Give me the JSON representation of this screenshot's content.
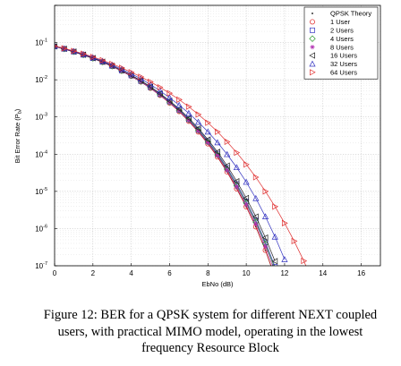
{
  "chart_data": {
    "type": "line",
    "title": "",
    "xlabel": "EbNo (dB)",
    "ylabel": "Bit Error Rate (Pb)",
    "ylabel_main": "Bit Error Rate (P",
    "ylabel_sub": "b",
    "ylabel_close": ")",
    "xlim": [
      0,
      17
    ],
    "xticks": [
      0,
      2,
      4,
      6,
      8,
      10,
      12,
      14,
      16
    ],
    "yscale": "log",
    "ylim": [
      1e-07,
      1
    ],
    "yticks": [
      1e-07,
      1e-06,
      1e-05,
      0.0001,
      0.001,
      0.01,
      0.1
    ],
    "ytick_labels": [
      {
        "base": "10",
        "exp": "-7"
      },
      {
        "base": "10",
        "exp": "-6"
      },
      {
        "base": "10",
        "exp": "-5"
      },
      {
        "base": "10",
        "exp": "-4"
      },
      {
        "base": "10",
        "exp": "-3"
      },
      {
        "base": "10",
        "exp": "-2"
      },
      {
        "base": "10",
        "exp": "-1"
      }
    ],
    "grid": true,
    "legend_position": "top-right",
    "series": [
      {
        "name": "QPSK Theory",
        "marker": "dot",
        "color": "#000000",
        "x": [
          0,
          0.5,
          1,
          1.5,
          2,
          2.5,
          3,
          3.5,
          4,
          4.5,
          5,
          5.5,
          6,
          6.5,
          7,
          7.5,
          8,
          8.5,
          9,
          9.5,
          10,
          10.5,
          11,
          11.5
        ],
        "y": [
          0.0786,
          0.0671,
          0.0563,
          0.0464,
          0.0375,
          0.0297,
          0.0229,
          0.0172,
          0.0125,
          0.0088,
          0.00595,
          0.00385,
          0.00239,
          0.00141,
          0.000773,
          0.000397,
          0.000191,
          8.45e-05,
          3.36e-05,
          1.18e-05,
          3.87e-06,
          1.12e-06,
          2.62e-07,
          4.98e-08
        ]
      },
      {
        "name": "1 User",
        "marker": "circle",
        "color": "#e02020",
        "x": [
          0,
          0.5,
          1,
          1.5,
          2,
          2.5,
          3,
          3.5,
          4,
          4.5,
          5,
          5.5,
          6,
          6.5,
          7,
          7.5,
          8,
          8.5,
          9,
          9.5,
          10,
          10.5,
          11,
          11.5
        ],
        "y": [
          0.0786,
          0.0671,
          0.0563,
          0.0464,
          0.0375,
          0.0297,
          0.0229,
          0.0172,
          0.0125,
          0.0088,
          0.00595,
          0.00385,
          0.00239,
          0.00141,
          0.000773,
          0.000397,
          0.000191,
          8.45e-05,
          3.36e-05,
          1.18e-05,
          3.87e-06,
          1.12e-06,
          2.62e-07,
          4.98e-08
        ]
      },
      {
        "name": "2 Users",
        "marker": "square",
        "color": "#3030c0",
        "x": [
          0,
          0.5,
          1,
          1.5,
          2,
          2.5,
          3,
          3.5,
          4,
          4.5,
          5,
          5.5,
          6,
          6.5,
          7,
          7.5,
          8,
          8.5,
          9,
          9.5,
          10,
          10.5,
          11,
          11.5
        ],
        "y": [
          0.079,
          0.0676,
          0.0568,
          0.0469,
          0.038,
          0.0302,
          0.0234,
          0.0177,
          0.013,
          0.0092,
          0.0063,
          0.00412,
          0.0026,
          0.00156,
          0.00087,
          0.000457,
          0.000225,
          0.000103,
          4.27e-05,
          1.58e-05,
          5.4e-06,
          1.66e-06,
          4.3e-07,
          9.44e-08
        ]
      },
      {
        "name": "4 Users",
        "marker": "diamond",
        "color": "#2e9a2e",
        "x": [
          0,
          0.5,
          1,
          1.5,
          2,
          2.5,
          3,
          3.5,
          4,
          4.5,
          5,
          5.5,
          6,
          6.5,
          7,
          7.5,
          8,
          8.5,
          9,
          9.5,
          10,
          10.5,
          11,
          11.5
        ],
        "y": [
          0.0788,
          0.0673,
          0.0566,
          0.0467,
          0.0378,
          0.03,
          0.0232,
          0.0175,
          0.0128,
          0.009,
          0.00615,
          0.004,
          0.00251,
          0.0015,
          0.000833,
          0.000434,
          0.000212,
          9.64e-05,
          3.95e-05,
          1.44e-05,
          4.9e-06,
          1.5e-06,
          3.86e-07,
          8.2e-08
        ]
      },
      {
        "name": "8 Users",
        "marker": "star",
        "color": "#b030b0",
        "x": [
          0,
          0.5,
          1,
          1.5,
          2,
          2.5,
          3,
          3.5,
          4,
          4.5,
          5,
          5.5,
          6,
          6.5,
          7,
          7.5,
          8,
          8.5,
          9,
          9.5,
          10,
          10.5,
          11,
          11.5
        ],
        "y": [
          0.0787,
          0.0672,
          0.0565,
          0.0466,
          0.0377,
          0.0299,
          0.0231,
          0.0174,
          0.0127,
          0.0089,
          0.00605,
          0.00392,
          0.00245,
          0.00146,
          0.000805,
          0.000416,
          0.000202,
          9.1e-05,
          3.68e-05,
          1.32e-05,
          4.4e-06,
          1.33e-06,
          3.3e-07,
          6.8e-08
        ]
      },
      {
        "name": "16 Users",
        "marker": "triangle-left",
        "color": "#202020",
        "x": [
          0,
          0.5,
          1,
          1.5,
          2,
          2.5,
          3,
          3.5,
          4,
          4.5,
          5,
          5.5,
          6,
          6.5,
          7,
          7.5,
          8,
          8.5,
          9,
          9.5,
          10,
          10.5,
          11,
          11.5
        ],
        "y": [
          0.0792,
          0.0678,
          0.0571,
          0.0472,
          0.0383,
          0.0305,
          0.0237,
          0.018,
          0.0133,
          0.0095,
          0.0065,
          0.00428,
          0.00272,
          0.00165,
          0.00093,
          0.000495,
          0.000247,
          0.000115,
          4.9e-05,
          1.87e-05,
          6.6e-06,
          2.1e-06,
          5.7e-07,
          1.33e-07
        ]
      },
      {
        "name": "32 Users",
        "marker": "triangle-up",
        "color": "#3030c0",
        "x": [
          0,
          0.5,
          1,
          1.5,
          2,
          2.5,
          3,
          3.5,
          4,
          4.5,
          5,
          5.5,
          6,
          6.5,
          7,
          7.5,
          8,
          8.5,
          9,
          9.5,
          10,
          10.5,
          11,
          11.5,
          12
        ],
        "y": [
          0.08,
          0.0688,
          0.0582,
          0.0484,
          0.0396,
          0.0318,
          0.025,
          0.0193,
          0.0145,
          0.0106,
          0.00745,
          0.00505,
          0.0033,
          0.00208,
          0.00126,
          0.00073,
          0.0004,
          0.000206,
          9.9e-05,
          4.4e-05,
          1.78e-05,
          6.5e-06,
          2.1e-06,
          6e-07,
          1.48e-07
        ]
      },
      {
        "name": "64 Users",
        "marker": "triangle-right",
        "color": "#e03030",
        "x": [
          0,
          0.5,
          1,
          1.5,
          2,
          2.5,
          3,
          3.5,
          4,
          4.5,
          5,
          5.5,
          6,
          6.5,
          7,
          7.5,
          8,
          8.5,
          9,
          9.5,
          10,
          10.5,
          11,
          11.5,
          12,
          12.5,
          13,
          13.5
        ],
        "y": [
          0.081,
          0.07,
          0.0596,
          0.05,
          0.0412,
          0.0335,
          0.0267,
          0.0209,
          0.016,
          0.012,
          0.0088,
          0.00628,
          0.00435,
          0.00292,
          0.00189,
          0.00117,
          0.0007,
          0.0004,
          0.000215,
          0.00011,
          5.3e-05,
          2.4e-05,
          1e-05,
          3.9e-06,
          1.4e-06,
          4.6e-07,
          1.35e-07,
          3.6e-08
        ]
      }
    ]
  },
  "caption": "Figure 12: BER for a QPSK system for different NEXT coupled users, with practical MIMO model, operating in the lowest frequency Resource Block"
}
